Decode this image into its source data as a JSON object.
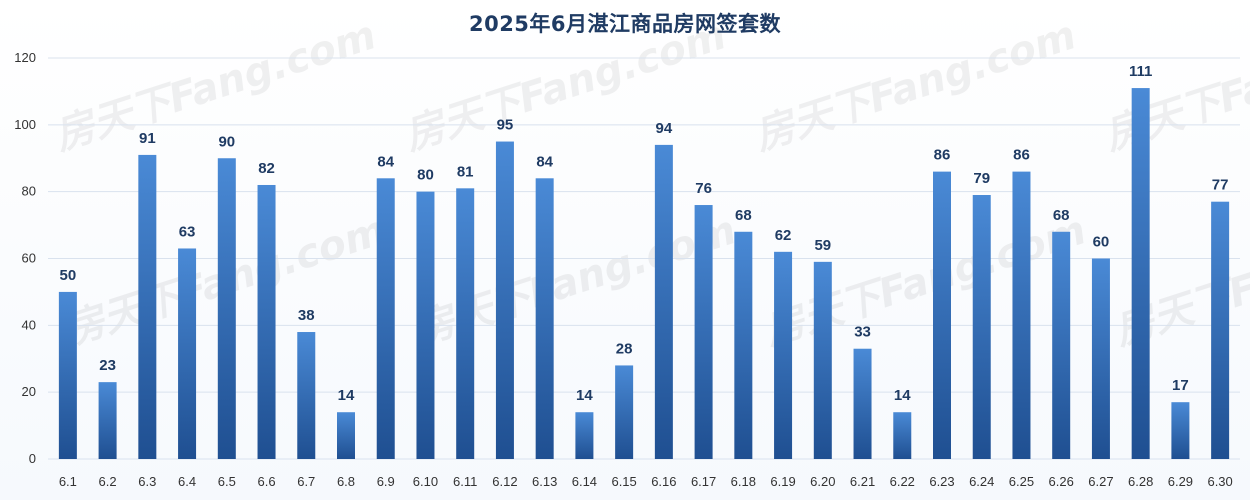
{
  "title": "2025年6月湛江商品房网签套数",
  "watermark": "房天下Fang.com",
  "colors": {
    "bar_top": "#4a8ad6",
    "bar_bottom": "#1f4f91",
    "grid": "#d9e2ee",
    "label": "#1f3b63"
  },
  "chart_data": {
    "type": "bar",
    "title": "2025年6月湛江商品房网签套数",
    "xlabel": "",
    "ylabel": "",
    "ylim": [
      0,
      120
    ],
    "yticks": [
      0,
      20,
      40,
      60,
      80,
      100,
      120
    ],
    "grid": true,
    "legend": "none",
    "categories": [
      "6.1",
      "6.2",
      "6.3",
      "6.4",
      "6.5",
      "6.6",
      "6.7",
      "6.8",
      "6.9",
      "6.10",
      "6.11",
      "6.12",
      "6.13",
      "6.14",
      "6.15",
      "6.16",
      "6.17",
      "6.18",
      "6.19",
      "6.20",
      "6.21",
      "6.22",
      "6.23",
      "6.24",
      "6.25",
      "6.26",
      "6.27",
      "6.28",
      "6.29",
      "6.30"
    ],
    "values": [
      50,
      23,
      91,
      63,
      90,
      82,
      38,
      14,
      84,
      80,
      81,
      95,
      84,
      14,
      28,
      94,
      76,
      68,
      62,
      59,
      33,
      14,
      86,
      79,
      86,
      68,
      60,
      111,
      17,
      77
    ]
  }
}
